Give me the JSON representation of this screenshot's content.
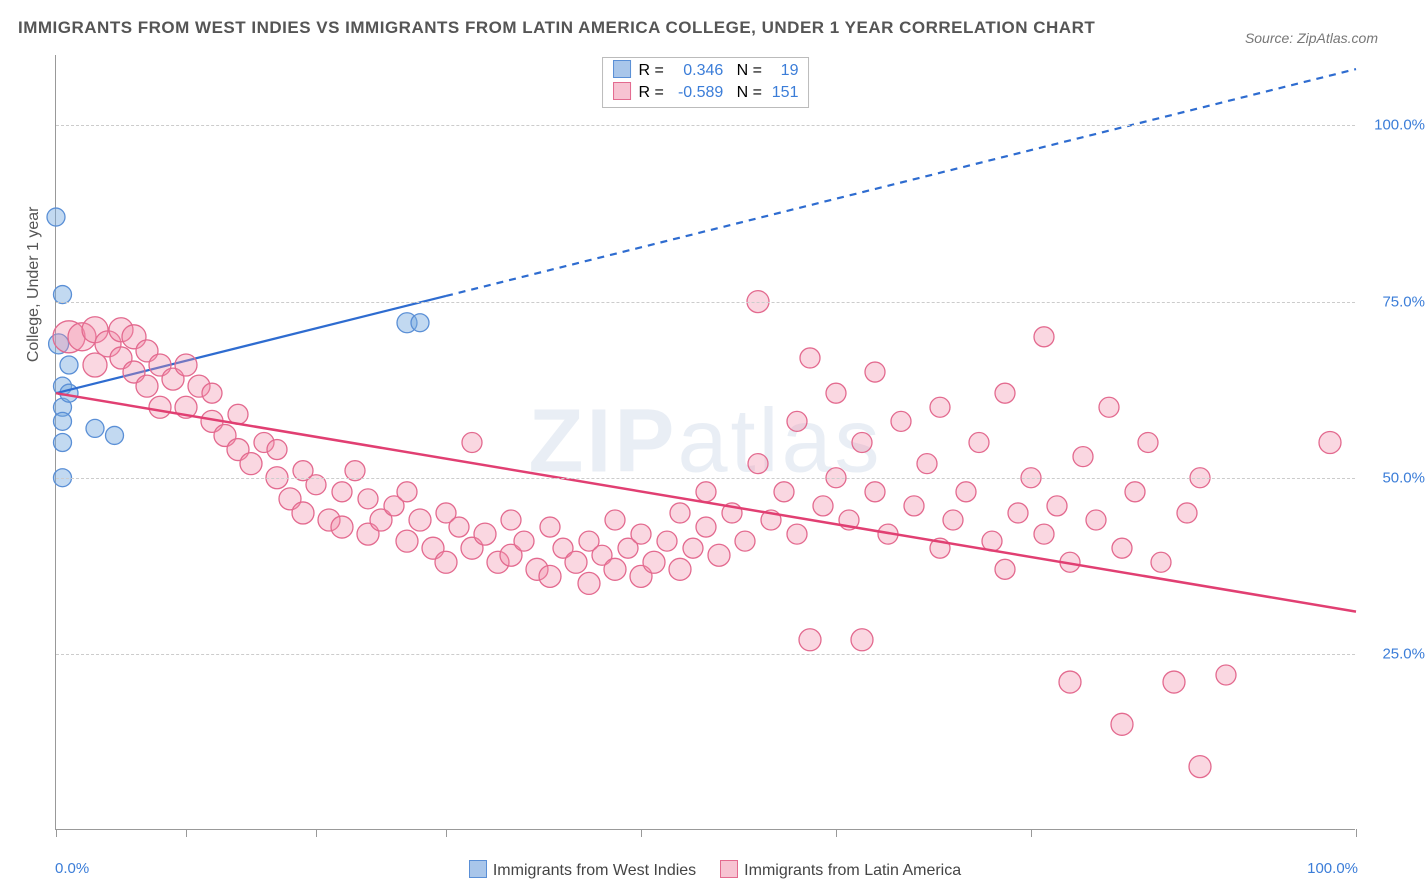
{
  "chart": {
    "type": "scatter",
    "title": "IMMIGRANTS FROM WEST INDIES VS IMMIGRANTS FROM LATIN AMERICA COLLEGE, UNDER 1 YEAR CORRELATION CHART",
    "source": "Source: ZipAtlas.com",
    "watermark": "ZIPatlas",
    "background_color": "#ffffff",
    "grid_color": "#cccccc",
    "axis_color": "#999999",
    "title_color": "#555555",
    "title_fontsize": 17,
    "label_fontsize": 16,
    "yaxis": {
      "title": "College, Under 1 year",
      "min": 0,
      "max": 110,
      "ticks": [
        25,
        50,
        75,
        100
      ],
      "tick_labels": [
        "25.0%",
        "50.0%",
        "75.0%",
        "100.0%"
      ],
      "tick_color": "#3b7dd8"
    },
    "xaxis": {
      "min": 0,
      "max": 100,
      "min_label": "0.0%",
      "max_label": "100.0%",
      "tick_positions": [
        0,
        10,
        20,
        30,
        45,
        60,
        75,
        100
      ],
      "label_color": "#3b7dd8"
    },
    "legend_top": {
      "rows": [
        {
          "swatch_fill": "#a9c6ea",
          "swatch_border": "#5a8fd6",
          "r_label": "R =",
          "r": "0.346",
          "n_label": "N =",
          "n": "19"
        },
        {
          "swatch_fill": "#f7c3d2",
          "swatch_border": "#e36a8f",
          "r_label": "R =",
          "r": "-0.589",
          "n_label": "N =",
          "n": "151"
        }
      ]
    },
    "legend_bottom": [
      {
        "swatch_fill": "#a9c6ea",
        "swatch_border": "#5a8fd6",
        "label": "Immigrants from West Indies"
      },
      {
        "swatch_fill": "#f7c3d2",
        "swatch_border": "#e36a8f",
        "label": "Immigrants from Latin America"
      }
    ],
    "series": [
      {
        "name": "Immigrants from West Indies",
        "color_fill": "rgba(120,170,225,0.45)",
        "color_stroke": "#5a8fd6",
        "marker_radius": 9,
        "trend_color": "#2e6cd0",
        "trend_width": 2.2,
        "trend_solid_end_x": 30,
        "trend": {
          "x1": 0,
          "y1": 62,
          "x2": 100,
          "y2": 108
        },
        "points": [
          {
            "x": 0,
            "y": 87,
            "r": 9
          },
          {
            "x": 0.5,
            "y": 76,
            "r": 9
          },
          {
            "x": 0.2,
            "y": 69,
            "r": 10
          },
          {
            "x": 1,
            "y": 66,
            "r": 9
          },
          {
            "x": 0.5,
            "y": 63,
            "r": 9
          },
          {
            "x": 0.5,
            "y": 60,
            "r": 9
          },
          {
            "x": 0.5,
            "y": 58,
            "r": 9
          },
          {
            "x": 1,
            "y": 62,
            "r": 9
          },
          {
            "x": 0.5,
            "y": 55,
            "r": 9
          },
          {
            "x": 3,
            "y": 57,
            "r": 9
          },
          {
            "x": 4.5,
            "y": 56,
            "r": 9
          },
          {
            "x": 0.5,
            "y": 50,
            "r": 9
          },
          {
            "x": 27,
            "y": 72,
            "r": 10
          },
          {
            "x": 28,
            "y": 72,
            "r": 9
          }
        ]
      },
      {
        "name": "Immigrants from Latin America",
        "color_fill": "rgba(240,140,170,0.35)",
        "color_stroke": "#e36a8f",
        "marker_radius": 11,
        "trend_color": "#e13f72",
        "trend_width": 2.5,
        "trend_solid_end_x": 100,
        "trend": {
          "x1": 0,
          "y1": 62,
          "x2": 100,
          "y2": 31
        },
        "points": [
          {
            "x": 1,
            "y": 70,
            "r": 16
          },
          {
            "x": 2,
            "y": 70,
            "r": 14
          },
          {
            "x": 3,
            "y": 71,
            "r": 13
          },
          {
            "x": 3,
            "y": 66,
            "r": 12
          },
          {
            "x": 4,
            "y": 69,
            "r": 13
          },
          {
            "x": 5,
            "y": 71,
            "r": 12
          },
          {
            "x": 5,
            "y": 67,
            "r": 11
          },
          {
            "x": 6,
            "y": 70,
            "r": 12
          },
          {
            "x": 6,
            "y": 65,
            "r": 11
          },
          {
            "x": 7,
            "y": 68,
            "r": 11
          },
          {
            "x": 7,
            "y": 63,
            "r": 11
          },
          {
            "x": 8,
            "y": 66,
            "r": 11
          },
          {
            "x": 8,
            "y": 60,
            "r": 11
          },
          {
            "x": 9,
            "y": 64,
            "r": 11
          },
          {
            "x": 10,
            "y": 66,
            "r": 11
          },
          {
            "x": 10,
            "y": 60,
            "r": 11
          },
          {
            "x": 11,
            "y": 63,
            "r": 11
          },
          {
            "x": 12,
            "y": 58,
            "r": 11
          },
          {
            "x": 12,
            "y": 62,
            "r": 10
          },
          {
            "x": 13,
            "y": 56,
            "r": 11
          },
          {
            "x": 14,
            "y": 59,
            "r": 10
          },
          {
            "x": 14,
            "y": 54,
            "r": 11
          },
          {
            "x": 15,
            "y": 52,
            "r": 11
          },
          {
            "x": 16,
            "y": 55,
            "r": 10
          },
          {
            "x": 17,
            "y": 50,
            "r": 11
          },
          {
            "x": 17,
            "y": 54,
            "r": 10
          },
          {
            "x": 18,
            "y": 47,
            "r": 11
          },
          {
            "x": 19,
            "y": 51,
            "r": 10
          },
          {
            "x": 19,
            "y": 45,
            "r": 11
          },
          {
            "x": 20,
            "y": 49,
            "r": 10
          },
          {
            "x": 21,
            "y": 44,
            "r": 11
          },
          {
            "x": 22,
            "y": 48,
            "r": 10
          },
          {
            "x": 22,
            "y": 43,
            "r": 11
          },
          {
            "x": 23,
            "y": 51,
            "r": 10
          },
          {
            "x": 24,
            "y": 42,
            "r": 11
          },
          {
            "x": 24,
            "y": 47,
            "r": 10
          },
          {
            "x": 25,
            "y": 44,
            "r": 11
          },
          {
            "x": 26,
            "y": 46,
            "r": 10
          },
          {
            "x": 27,
            "y": 41,
            "r": 11
          },
          {
            "x": 27,
            "y": 48,
            "r": 10
          },
          {
            "x": 28,
            "y": 44,
            "r": 11
          },
          {
            "x": 29,
            "y": 40,
            "r": 11
          },
          {
            "x": 30,
            "y": 45,
            "r": 10
          },
          {
            "x": 30,
            "y": 38,
            "r": 11
          },
          {
            "x": 31,
            "y": 43,
            "r": 10
          },
          {
            "x": 32,
            "y": 40,
            "r": 11
          },
          {
            "x": 32,
            "y": 55,
            "r": 10
          },
          {
            "x": 33,
            "y": 42,
            "r": 11
          },
          {
            "x": 34,
            "y": 38,
            "r": 11
          },
          {
            "x": 35,
            "y": 44,
            "r": 10
          },
          {
            "x": 35,
            "y": 39,
            "r": 11
          },
          {
            "x": 36,
            "y": 41,
            "r": 10
          },
          {
            "x": 37,
            "y": 37,
            "r": 11
          },
          {
            "x": 38,
            "y": 43,
            "r": 10
          },
          {
            "x": 38,
            "y": 36,
            "r": 11
          },
          {
            "x": 39,
            "y": 40,
            "r": 10
          },
          {
            "x": 40,
            "y": 38,
            "r": 11
          },
          {
            "x": 41,
            "y": 41,
            "r": 10
          },
          {
            "x": 41,
            "y": 35,
            "r": 11
          },
          {
            "x": 42,
            "y": 39,
            "r": 10
          },
          {
            "x": 43,
            "y": 37,
            "r": 11
          },
          {
            "x": 43,
            "y": 44,
            "r": 10
          },
          {
            "x": 44,
            "y": 40,
            "r": 10
          },
          {
            "x": 45,
            "y": 36,
            "r": 11
          },
          {
            "x": 45,
            "y": 42,
            "r": 10
          },
          {
            "x": 46,
            "y": 38,
            "r": 11
          },
          {
            "x": 47,
            "y": 41,
            "r": 10
          },
          {
            "x": 48,
            "y": 45,
            "r": 10
          },
          {
            "x": 48,
            "y": 37,
            "r": 11
          },
          {
            "x": 49,
            "y": 40,
            "r": 10
          },
          {
            "x": 50,
            "y": 43,
            "r": 10
          },
          {
            "x": 50,
            "y": 48,
            "r": 10
          },
          {
            "x": 51,
            "y": 39,
            "r": 11
          },
          {
            "x": 52,
            "y": 45,
            "r": 10
          },
          {
            "x": 53,
            "y": 41,
            "r": 10
          },
          {
            "x": 54,
            "y": 52,
            "r": 10
          },
          {
            "x": 54,
            "y": 75,
            "r": 11
          },
          {
            "x": 55,
            "y": 44,
            "r": 10
          },
          {
            "x": 56,
            "y": 48,
            "r": 10
          },
          {
            "x": 57,
            "y": 42,
            "r": 10
          },
          {
            "x": 57,
            "y": 58,
            "r": 10
          },
          {
            "x": 58,
            "y": 67,
            "r": 10
          },
          {
            "x": 58,
            "y": 27,
            "r": 11
          },
          {
            "x": 59,
            "y": 46,
            "r": 10
          },
          {
            "x": 60,
            "y": 50,
            "r": 10
          },
          {
            "x": 60,
            "y": 62,
            "r": 10
          },
          {
            "x": 61,
            "y": 44,
            "r": 10
          },
          {
            "x": 62,
            "y": 55,
            "r": 10
          },
          {
            "x": 62,
            "y": 27,
            "r": 11
          },
          {
            "x": 63,
            "y": 48,
            "r": 10
          },
          {
            "x": 63,
            "y": 65,
            "r": 10
          },
          {
            "x": 64,
            "y": 42,
            "r": 10
          },
          {
            "x": 65,
            "y": 58,
            "r": 10
          },
          {
            "x": 66,
            "y": 46,
            "r": 10
          },
          {
            "x": 67,
            "y": 52,
            "r": 10
          },
          {
            "x": 68,
            "y": 40,
            "r": 10
          },
          {
            "x": 68,
            "y": 60,
            "r": 10
          },
          {
            "x": 69,
            "y": 44,
            "r": 10
          },
          {
            "x": 70,
            "y": 48,
            "r": 10
          },
          {
            "x": 71,
            "y": 55,
            "r": 10
          },
          {
            "x": 72,
            "y": 41,
            "r": 10
          },
          {
            "x": 73,
            "y": 62,
            "r": 10
          },
          {
            "x": 73,
            "y": 37,
            "r": 10
          },
          {
            "x": 74,
            "y": 45,
            "r": 10
          },
          {
            "x": 75,
            "y": 50,
            "r": 10
          },
          {
            "x": 76,
            "y": 42,
            "r": 10
          },
          {
            "x": 76,
            "y": 70,
            "r": 10
          },
          {
            "x": 77,
            "y": 46,
            "r": 10
          },
          {
            "x": 78,
            "y": 38,
            "r": 10
          },
          {
            "x": 78,
            "y": 21,
            "r": 11
          },
          {
            "x": 79,
            "y": 53,
            "r": 10
          },
          {
            "x": 80,
            "y": 44,
            "r": 10
          },
          {
            "x": 81,
            "y": 60,
            "r": 10
          },
          {
            "x": 82,
            "y": 40,
            "r": 10
          },
          {
            "x": 82,
            "y": 15,
            "r": 11
          },
          {
            "x": 83,
            "y": 48,
            "r": 10
          },
          {
            "x": 84,
            "y": 55,
            "r": 10
          },
          {
            "x": 85,
            "y": 38,
            "r": 10
          },
          {
            "x": 86,
            "y": 21,
            "r": 11
          },
          {
            "x": 87,
            "y": 45,
            "r": 10
          },
          {
            "x": 88,
            "y": 50,
            "r": 10
          },
          {
            "x": 88,
            "y": 9,
            "r": 11
          },
          {
            "x": 90,
            "y": 22,
            "r": 10
          },
          {
            "x": 98,
            "y": 55,
            "r": 11
          }
        ]
      }
    ]
  }
}
